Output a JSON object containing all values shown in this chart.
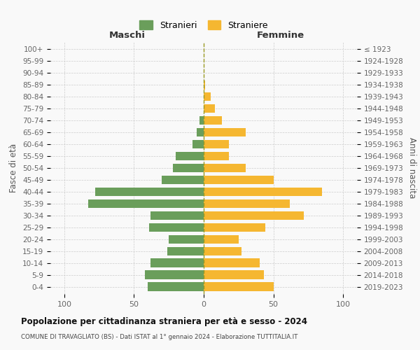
{
  "age_groups": [
    "100+",
    "95-99",
    "90-94",
    "85-89",
    "80-84",
    "75-79",
    "70-74",
    "65-69",
    "60-64",
    "55-59",
    "50-54",
    "45-49",
    "40-44",
    "35-39",
    "30-34",
    "25-29",
    "20-24",
    "15-19",
    "10-14",
    "5-9",
    "0-4"
  ],
  "birth_years": [
    "≤ 1923",
    "1924-1928",
    "1929-1933",
    "1934-1938",
    "1939-1943",
    "1944-1948",
    "1949-1953",
    "1954-1958",
    "1959-1963",
    "1964-1968",
    "1969-1973",
    "1974-1978",
    "1979-1983",
    "1984-1988",
    "1989-1993",
    "1994-1998",
    "1999-2003",
    "2004-2008",
    "2009-2013",
    "2014-2018",
    "2019-2023"
  ],
  "males": [
    0,
    0,
    0,
    0,
    0,
    0,
    3,
    5,
    8,
    20,
    22,
    30,
    78,
    83,
    38,
    39,
    25,
    26,
    38,
    42,
    40
  ],
  "females": [
    0,
    0,
    0,
    1,
    5,
    8,
    13,
    30,
    18,
    18,
    30,
    50,
    85,
    62,
    72,
    44,
    25,
    27,
    40,
    43,
    50
  ],
  "male_color": "#6a9e5b",
  "female_color": "#f5b731",
  "background_color": "#f9f9f9",
  "grid_color": "#cccccc",
  "title": "Popolazione per cittadinanza straniera per età e sesso - 2024",
  "subtitle": "COMUNE DI TRAVAGLIATO (BS) - Dati ISTAT al 1° gennaio 2024 - Elaborazione TUTTITALIA.IT",
  "xlabel_left": "Maschi",
  "xlabel_right": "Femmine",
  "ylabel_left": "Fasce di età",
  "ylabel_right": "Anni di nascita",
  "legend_male": "Stranieri",
  "legend_female": "Straniere",
  "xlim": 110,
  "bar_height": 0.75
}
